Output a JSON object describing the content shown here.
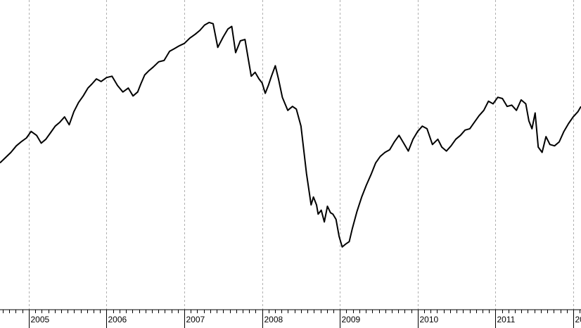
{
  "chart_data": {
    "type": "line",
    "title": "",
    "xlabel": "",
    "ylabel": "",
    "grid": "vertical-dashed",
    "legend": "none",
    "x_ticks": [
      "2005",
      "2006",
      "2007",
      "2008",
      "2009",
      "2010",
      "2011",
      "20"
    ],
    "x_range": [
      2004.63,
      2012.1
    ],
    "y_range": [
      0,
      100
    ],
    "series": [
      {
        "color": "#000000",
        "x": [
          2004.63,
          2004.7,
          2004.77,
          2004.84,
          2004.9,
          2004.97,
          2005.03,
          2005.1,
          2005.16,
          2005.22,
          2005.28,
          2005.34,
          2005.4,
          2005.46,
          2005.52,
          2005.58,
          2005.64,
          2005.7,
          2005.76,
          2005.81,
          2005.87,
          2005.93,
          2006.0,
          2006.07,
          2006.14,
          2006.21,
          2006.28,
          2006.34,
          2006.4,
          2006.44,
          2006.49,
          2006.54,
          2006.6,
          2006.67,
          2006.74,
          2006.81,
          2006.87,
          2006.93,
          2007.0,
          2007.07,
          2007.14,
          2007.2,
          2007.26,
          2007.32,
          2007.37,
          2007.43,
          2007.5,
          2007.56,
          2007.61,
          2007.66,
          2007.72,
          2007.78,
          2007.82,
          2007.86,
          2007.91,
          2007.96,
          2008.0,
          2008.04,
          2008.08,
          2008.12,
          2008.17,
          2008.21,
          2008.26,
          2008.33,
          2008.39,
          2008.44,
          2008.5,
          2008.57,
          2008.63,
          2008.66,
          2008.7,
          2008.72,
          2008.76,
          2008.8,
          2008.84,
          2008.88,
          2008.91,
          2008.95,
          2008.99,
          2009.03,
          2009.07,
          2009.12,
          2009.16,
          2009.22,
          2009.28,
          2009.34,
          2009.4,
          2009.46,
          2009.52,
          2009.58,
          2009.64,
          2009.7,
          2009.76,
          2009.82,
          2009.88,
          2009.94,
          2010.0,
          2010.06,
          2010.12,
          2010.19,
          2010.26,
          2010.31,
          2010.37,
          2010.43,
          2010.49,
          2010.55,
          2010.61,
          2010.67,
          2010.73,
          2010.79,
          2010.85,
          2010.91,
          2010.97,
          2011.03,
          2011.09,
          2011.15,
          2011.21,
          2011.27,
          2011.33,
          2011.39,
          2011.43,
          2011.47,
          2011.51,
          2011.55,
          2011.6,
          2011.65,
          2011.7,
          2011.76,
          2011.82,
          2011.88,
          2011.94,
          2012.0,
          2012.06,
          2012.1
        ],
        "y": [
          46.0,
          48.0,
          50.0,
          52.5,
          54.0,
          55.5,
          58.0,
          56.5,
          53.5,
          55.0,
          57.5,
          60.0,
          61.5,
          63.5,
          60.5,
          65.5,
          69.0,
          71.5,
          74.5,
          76.0,
          78.0,
          77.0,
          78.5,
          79.0,
          75.5,
          73.0,
          74.5,
          71.5,
          73.0,
          76.0,
          79.5,
          81.0,
          82.5,
          84.5,
          85.0,
          88.5,
          89.5,
          90.5,
          91.5,
          93.5,
          95.0,
          96.5,
          98.5,
          99.5,
          99.0,
          90.0,
          94.0,
          97.0,
          98.0,
          88.0,
          92.5,
          93.0,
          86.0,
          79.0,
          80.5,
          78.0,
          76.5,
          72.5,
          75.5,
          79.0,
          83.0,
          78.0,
          71.0,
          66.0,
          67.5,
          66.5,
          60.0,
          42.0,
          30.0,
          33.0,
          30.0,
          26.5,
          28.0,
          23.5,
          29.5,
          27.0,
          26.5,
          24.5,
          18.0,
          14.0,
          15.0,
          16.0,
          21.0,
          27.5,
          33.0,
          37.5,
          41.5,
          46.0,
          48.5,
          50.0,
          51.0,
          54.0,
          56.5,
          53.5,
          50.5,
          55.0,
          58.0,
          60.0,
          59.0,
          53.0,
          55.0,
          52.0,
          50.5,
          52.5,
          55.0,
          56.5,
          58.5,
          59.0,
          61.5,
          64.0,
          66.0,
          69.5,
          68.5,
          71.0,
          70.5,
          67.5,
          68.0,
          66.0,
          70.0,
          68.5,
          62.0,
          59.0,
          65.0,
          52.0,
          50.0,
          56.0,
          53.0,
          52.5,
          54.0,
          58.0,
          61.0,
          63.5,
          65.5,
          67.5
        ]
      }
    ]
  }
}
